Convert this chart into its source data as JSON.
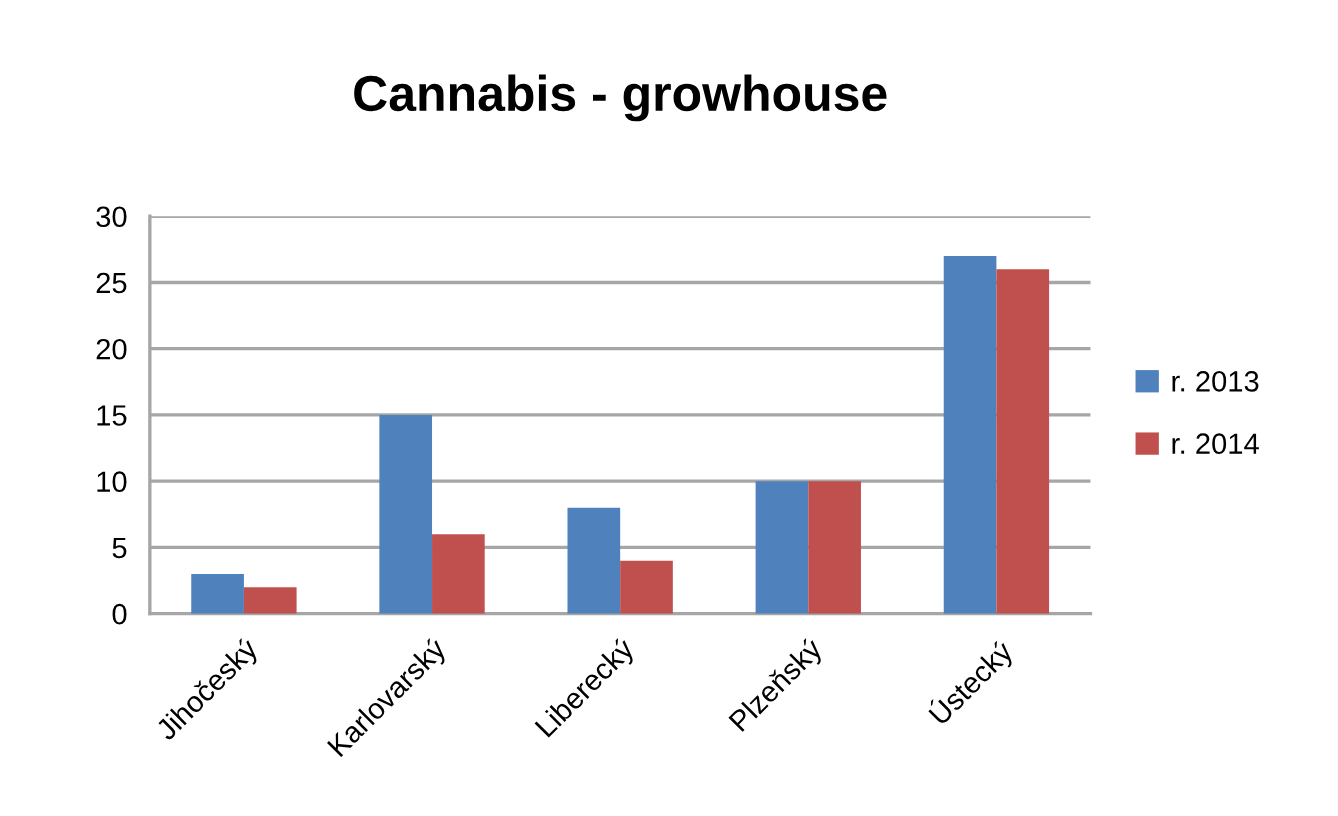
{
  "chart_data": {
    "type": "bar",
    "title": "Cannabis - growhouse",
    "categories": [
      "Jihočeský",
      "Karlovarský",
      "Liberecký",
      "Plzeňský",
      "Ústecký"
    ],
    "series": [
      {
        "name": "r. 2013",
        "color": "#4f81bd",
        "values": [
          3,
          15,
          8,
          10,
          27
        ]
      },
      {
        "name": "r. 2014",
        "color": "#c0504d",
        "values": [
          2,
          6,
          4,
          10,
          26
        ]
      }
    ],
    "ylim": [
      0,
      30
    ],
    "yticks": [
      0,
      5,
      10,
      15,
      20,
      25,
      30
    ],
    "grid": "y",
    "legend": "right"
  }
}
